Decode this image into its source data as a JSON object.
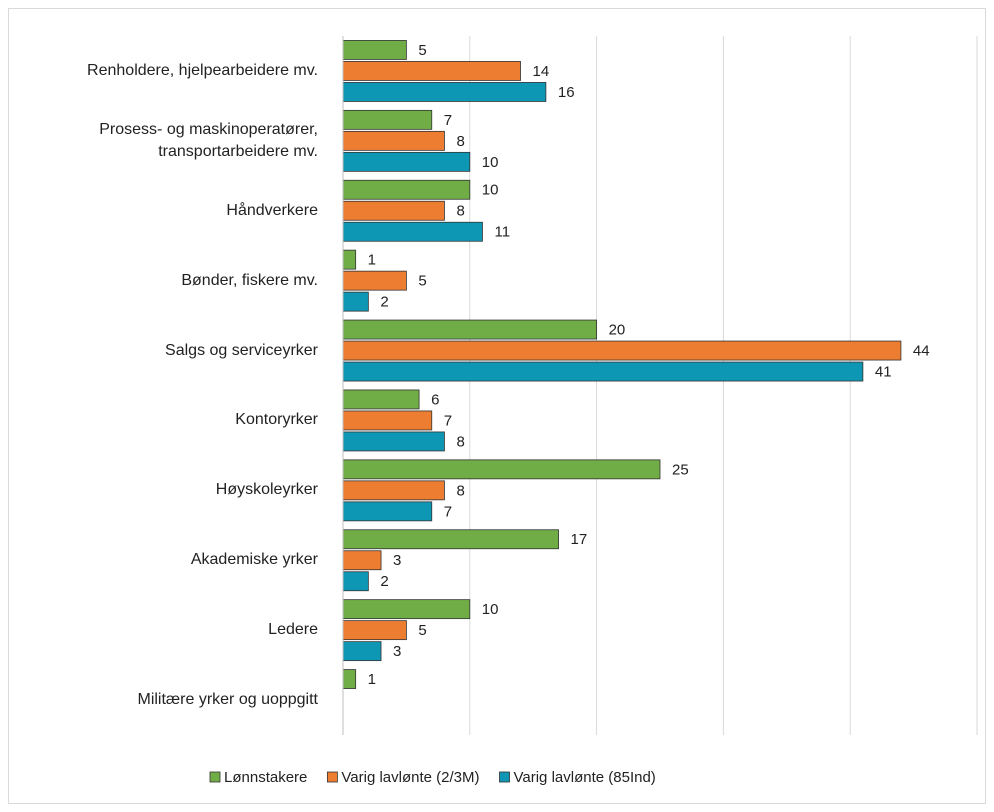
{
  "chart_data": {
    "type": "bar",
    "orientation": "horizontal",
    "categories": [
      "Renholdere, hjelpearbeidere mv.",
      "Prosess- og maskinoperatører, transportarbeidere mv.",
      "Håndverkere",
      "Bønder, fiskere mv.",
      "Salgs og serviceyrker",
      "Kontoryrker",
      "Høyskoleyrker",
      "Akademiske yrker",
      "Ledere",
      "Militære yrker og uoppgitt"
    ],
    "series": [
      {
        "name": "Lønnstakere",
        "color": "#70ad47",
        "values": [
          5,
          7,
          10,
          1,
          20,
          6,
          25,
          17,
          10,
          1
        ]
      },
      {
        "name": "Varig lavlønte (2/3M)",
        "color": "#ed7d31",
        "values": [
          14,
          8,
          8,
          5,
          44,
          7,
          8,
          3,
          5,
          null
        ]
      },
      {
        "name": "Varig lavlønte (85Ind)",
        "color": "#0e97b5",
        "values": [
          16,
          10,
          11,
          2,
          41,
          8,
          7,
          2,
          3,
          null
        ]
      }
    ],
    "xlim": [
      0,
      50
    ],
    "xticks": [
      0,
      10,
      20,
      30,
      40,
      50
    ],
    "grid": true,
    "legend": "bottom"
  }
}
